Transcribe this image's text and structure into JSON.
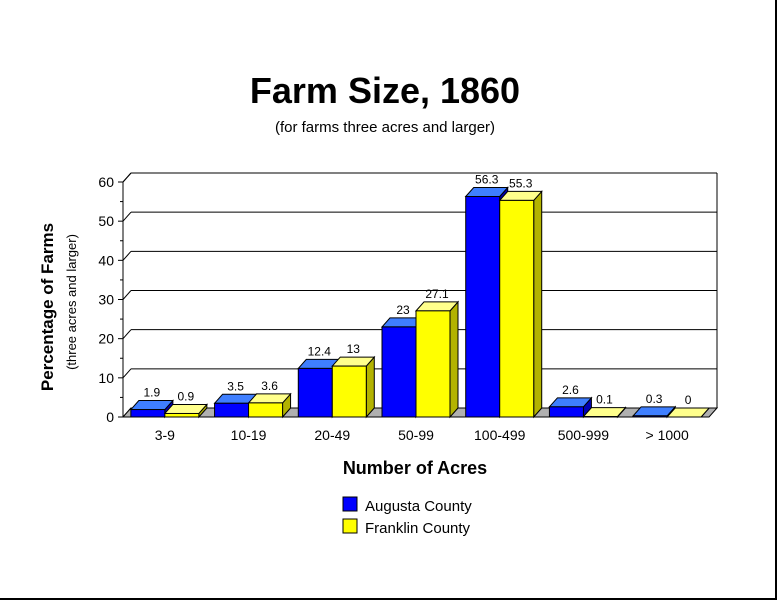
{
  "chart_data": {
    "type": "bar",
    "title": "Farm Size, 1860",
    "subtitle": "(for farms three acres and larger)",
    "xlabel": "Number of  Acres",
    "ylabel": "Percentage of Farms",
    "ylabel_sub": "(three acres and larger)",
    "categories": [
      "3-9",
      "10-19",
      "20-49",
      "50-99",
      "100-499",
      "500-999",
      "> 1000"
    ],
    "yticks": [
      0,
      10,
      20,
      30,
      40,
      50,
      60
    ],
    "ylim": [
      0,
      60
    ],
    "grid": true,
    "legend_position": "bottom-center",
    "series": [
      {
        "name": "Augusta County",
        "color": "#0000ff",
        "values": [
          1.9,
          3.5,
          12.4,
          23,
          56.3,
          2.6,
          0.3
        ]
      },
      {
        "name": "Franklin County",
        "color": "#ffff00",
        "values": [
          0.9,
          3.6,
          13,
          27.1,
          55.3,
          0.1,
          0
        ]
      }
    ]
  }
}
